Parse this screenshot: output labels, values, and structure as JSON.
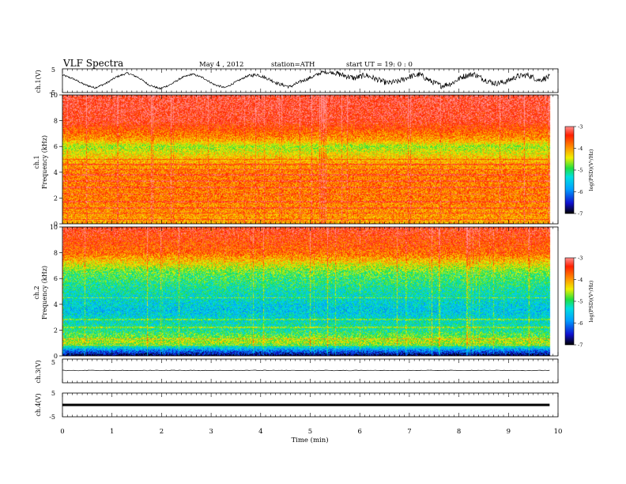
{
  "header": {
    "title": "VLF  Spectra",
    "date": "May 4 , 2012",
    "station": "station=ATH",
    "start": "start  UT  =   19: 0  : 0"
  },
  "colors": {
    "spectrogram_scale": [
      "#000000",
      "#1010d0",
      "#00a0ff",
      "#00e0e0",
      "#20e040",
      "#f0f000",
      "#ff9000",
      "#ff2000",
      "#ff9090"
    ]
  },
  "chart_data": [
    {
      "type": "line",
      "name": "ch1-waveform",
      "ylabel": "ch.1(V)",
      "ylim": [
        -5,
        5
      ],
      "yticks": [
        "5",
        "-5"
      ],
      "x_minutes_range": [
        0,
        9.83
      ],
      "envelope_centerline_V": [
        2.4,
        0.8,
        -1.6,
        -3.0,
        -1.2,
        1.6,
        3.2,
        1.4,
        -1.8,
        -3.4,
        -1.6,
        1.2,
        2.8,
        1.2,
        -1.6,
        -3.0,
        -0.6,
        1.8,
        2.6,
        0.8,
        -1.4,
        -2.6,
        -0.4,
        1.4,
        3.6,
        3.4,
        2.2,
        1.0,
        2.4,
        0.6,
        -1.0,
        -0.4,
        1.6,
        2.6,
        -0.2,
        -2.2,
        -1.0,
        1.8,
        2.8,
        0.4,
        -1.2,
        -0.4,
        1.8,
        2.4,
        0.2,
        1.6
      ]
    },
    {
      "type": "heatmap",
      "name": "ch1-spectrogram",
      "ylabel_channel": "ch.1",
      "ylabel": "Frequency  (kHz)",
      "xlim": [
        0,
        10
      ],
      "ylim": [
        0,
        10
      ],
      "yticks": [
        "0",
        "2",
        "4",
        "6",
        "8",
        "10"
      ],
      "colorbar": {
        "label": "log(PSD)(V²/Hz)",
        "ticks": [
          "-3",
          "-4",
          "-5",
          "-6",
          "-7"
        ],
        "range": [
          -7,
          -3
        ]
      },
      "band_profile_logpsd": [
        {
          "f_kHz": 0.0,
          "level": -4.1
        },
        {
          "f_kHz": 1.0,
          "level": -4.0
        },
        {
          "f_kHz": 2.0,
          "level": -3.9
        },
        {
          "f_kHz": 4.0,
          "level": -3.9
        },
        {
          "f_kHz": 5.0,
          "level": -4.2
        },
        {
          "f_kHz": 6.0,
          "level": -4.7
        },
        {
          "f_kHz": 6.5,
          "level": -4.1
        },
        {
          "f_kHz": 8.0,
          "level": -3.4
        },
        {
          "f_kHz": 10.0,
          "level": -3.3
        }
      ],
      "lines_kHz": [
        0.3,
        0.8,
        1.2,
        1.7,
        2.3,
        2.8,
        3.3,
        3.8,
        4.2,
        4.6,
        5.0
      ]
    },
    {
      "type": "heatmap",
      "name": "ch2-spectrogram",
      "ylabel_channel": "ch.2",
      "ylabel": "Frequency  (kHz)",
      "xlim": [
        0,
        10
      ],
      "ylim": [
        0,
        10
      ],
      "yticks": [
        "0",
        "2",
        "4",
        "6",
        "8",
        "10"
      ],
      "colorbar": {
        "label": "log(PSD)(V²/Hz)",
        "ticks": [
          "-3",
          "-4",
          "-5",
          "-6",
          "-7"
        ],
        "range": [
          -7,
          -3
        ]
      },
      "band_profile_logpsd": [
        {
          "f_kHz": 0.0,
          "level": -6.8
        },
        {
          "f_kHz": 0.4,
          "level": -6.0
        },
        {
          "f_kHz": 1.0,
          "level": -4.6
        },
        {
          "f_kHz": 2.0,
          "level": -5.2
        },
        {
          "f_kHz": 3.5,
          "level": -5.6
        },
        {
          "f_kHz": 5.0,
          "level": -5.3
        },
        {
          "f_kHz": 6.5,
          "level": -4.9
        },
        {
          "f_kHz": 8.0,
          "level": -3.8
        },
        {
          "f_kHz": 10.0,
          "level": -3.4
        }
      ],
      "lines_kHz": [
        0.8,
        1.3,
        2.2,
        2.8,
        4.5
      ]
    },
    {
      "type": "line",
      "name": "ch3-waveform",
      "ylabel": "ch.3(V)",
      "ylim": [
        -5,
        5
      ],
      "yticks": [
        "5"
      ],
      "level_V": 0.2
    },
    {
      "type": "line",
      "name": "ch4-waveform",
      "ylabel": "ch.4(V)",
      "ylim": [
        -5,
        5
      ],
      "yticks": [
        "5",
        "-5"
      ],
      "level_V": 0.0
    },
    {
      "type": "axis",
      "name": "time-axis",
      "xlabel": "Time  (min)",
      "xlim": [
        0,
        10
      ],
      "xticks": [
        "0",
        "1",
        "2",
        "3",
        "4",
        "5",
        "6",
        "7",
        "8",
        "9",
        "10"
      ]
    }
  ]
}
